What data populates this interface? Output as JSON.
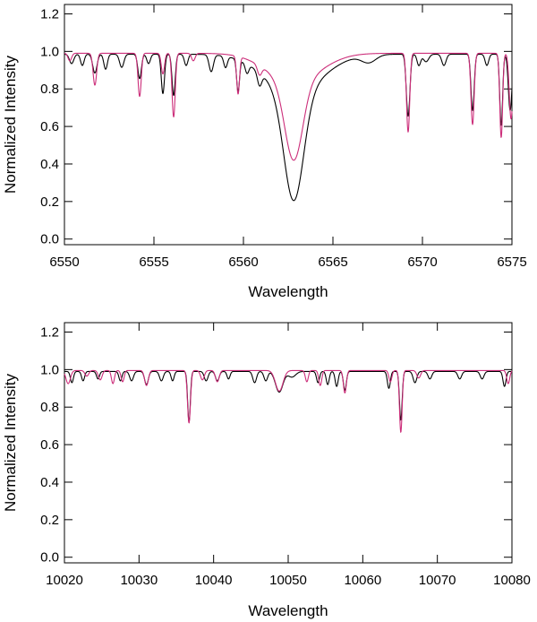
{
  "chart_data": [
    {
      "type": "line",
      "xlabel": "Wavelength",
      "ylabel": "Normalized Intensity",
      "xlim": [
        6550,
        6575
      ],
      "ylim": [
        -0.03,
        1.25
      ],
      "xticks": [
        6550,
        6555,
        6560,
        6565,
        6570,
        6575
      ],
      "yticks": [
        0.0,
        0.2,
        0.4,
        0.6,
        0.8,
        1.0,
        1.2
      ],
      "ytick_labels": [
        "0.0",
        "0.2",
        "0.4",
        "0.6",
        "0.8",
        "1.0",
        "1.2"
      ],
      "continuum": 1.0,
      "series": [
        {
          "color": "#000000",
          "baseline": 0.985,
          "lines": [
            [
              6550.4,
              0.05,
              0.12
            ],
            [
              6551.0,
              0.06,
              0.1
            ],
            [
              6551.7,
              0.1,
              0.12
            ],
            [
              6552.3,
              0.08,
              0.1
            ],
            [
              6553.2,
              0.07,
              0.12
            ],
            [
              6554.2,
              0.13,
              0.1
            ],
            [
              6554.7,
              0.05,
              0.1
            ],
            [
              6555.5,
              0.21,
              0.09
            ],
            [
              6556.1,
              0.22,
              0.09
            ],
            [
              6556.8,
              0.06,
              0.1
            ],
            [
              6558.2,
              0.09,
              0.12
            ],
            [
              6559.0,
              0.06,
              0.1
            ],
            [
              6559.7,
              0.17,
              0.08
            ],
            [
              6560.2,
              0.05,
              0.1
            ],
            [
              6560.9,
              0.07,
              0.12
            ],
            [
              6562.81,
              0.58,
              0.55
            ],
            [
              6562.81,
              0.2,
              1.6
            ],
            [
              6567.0,
              0.04,
              0.4
            ],
            [
              6569.2,
              0.33,
              0.1
            ],
            [
              6569.8,
              0.06,
              0.1
            ],
            [
              6570.2,
              0.04,
              0.15
            ],
            [
              6571.2,
              0.06,
              0.12
            ],
            [
              6572.8,
              0.3,
              0.09
            ],
            [
              6573.6,
              0.06,
              0.1
            ],
            [
              6574.4,
              0.38,
              0.08
            ],
            [
              6574.9,
              0.3,
              0.1
            ]
          ]
        },
        {
          "color": "#cc2e7a",
          "baseline": 0.99,
          "lines": [
            [
              6550.3,
              0.04,
              0.1
            ],
            [
              6551.7,
              0.17,
              0.1
            ],
            [
              6554.2,
              0.23,
              0.09
            ],
            [
              6555.5,
              0.11,
              0.09
            ],
            [
              6556.1,
              0.34,
              0.09
            ],
            [
              6557.2,
              0.04,
              0.1
            ],
            [
              6559.7,
              0.2,
              0.08
            ],
            [
              6560.9,
              0.05,
              0.12
            ],
            [
              6562.81,
              0.42,
              0.5
            ],
            [
              6562.81,
              0.15,
              1.5
            ],
            [
              6569.2,
              0.42,
              0.09
            ],
            [
              6572.8,
              0.38,
              0.09
            ],
            [
              6574.4,
              0.45,
              0.08
            ],
            [
              6574.95,
              0.35,
              0.1
            ]
          ]
        }
      ]
    },
    {
      "type": "line",
      "xlabel": "Wavelength",
      "ylabel": "Normalized Intensity",
      "xlim": [
        10020,
        10080
      ],
      "ylim": [
        -0.03,
        1.25
      ],
      "xticks": [
        10020,
        10030,
        10040,
        10050,
        10060,
        10070,
        10080
      ],
      "yticks": [
        0.0,
        0.2,
        0.4,
        0.6,
        0.8,
        1.0,
        1.2
      ],
      "ytick_labels": [
        "0.0",
        "0.2",
        "0.4",
        "0.6",
        "0.8",
        "1.0",
        "1.2"
      ],
      "continuum": 1.0,
      "series": [
        {
          "color": "#000000",
          "baseline": 0.99,
          "lines": [
            [
              10021.0,
              0.06,
              0.2
            ],
            [
              10022.5,
              0.05,
              0.2
            ],
            [
              10024.5,
              0.04,
              0.2
            ],
            [
              10027.5,
              0.05,
              0.2
            ],
            [
              10029.0,
              0.05,
              0.25
            ],
            [
              10031.0,
              0.07,
              0.25
            ],
            [
              10033.0,
              0.05,
              0.25
            ],
            [
              10034.5,
              0.05,
              0.2
            ],
            [
              10036.7,
              0.27,
              0.18
            ],
            [
              10039.0,
              0.05,
              0.25
            ],
            [
              10040.5,
              0.05,
              0.25
            ],
            [
              10042.0,
              0.04,
              0.2
            ],
            [
              10045.5,
              0.06,
              0.25
            ],
            [
              10047.0,
              0.05,
              0.25
            ],
            [
              10048.8,
              0.11,
              0.5
            ],
            [
              10050.5,
              0.03,
              0.5
            ],
            [
              10054.0,
              0.06,
              0.2
            ],
            [
              10055.3,
              0.07,
              0.2
            ],
            [
              10056.5,
              0.08,
              0.2
            ],
            [
              10057.6,
              0.1,
              0.2
            ],
            [
              10063.5,
              0.09,
              0.2
            ],
            [
              10065.1,
              0.26,
              0.18
            ],
            [
              10067.0,
              0.06,
              0.25
            ],
            [
              10069.0,
              0.04,
              0.25
            ],
            [
              10073.0,
              0.04,
              0.25
            ],
            [
              10076.0,
              0.04,
              0.25
            ],
            [
              10079.0,
              0.08,
              0.2
            ]
          ]
        },
        {
          "color": "#cc2e7a",
          "baseline": 0.995,
          "lines": [
            [
              10020.5,
              0.07,
              0.3
            ],
            [
              10023.0,
              0.03,
              0.25
            ],
            [
              10024.8,
              0.05,
              0.25
            ],
            [
              10026.5,
              0.07,
              0.2
            ],
            [
              10027.8,
              0.06,
              0.2
            ],
            [
              10031.0,
              0.08,
              0.25
            ],
            [
              10036.7,
              0.28,
              0.2
            ],
            [
              10038.5,
              0.05,
              0.25
            ],
            [
              10040.5,
              0.06,
              0.25
            ],
            [
              10048.8,
              0.11,
              0.5
            ],
            [
              10052.5,
              0.06,
              0.2
            ],
            [
              10054.3,
              0.08,
              0.2
            ],
            [
              10057.6,
              0.12,
              0.2
            ],
            [
              10063.7,
              0.06,
              0.2
            ],
            [
              10065.1,
              0.33,
              0.18
            ],
            [
              10067.5,
              0.04,
              0.25
            ],
            [
              10079.5,
              0.07,
              0.2
            ]
          ]
        }
      ]
    }
  ]
}
